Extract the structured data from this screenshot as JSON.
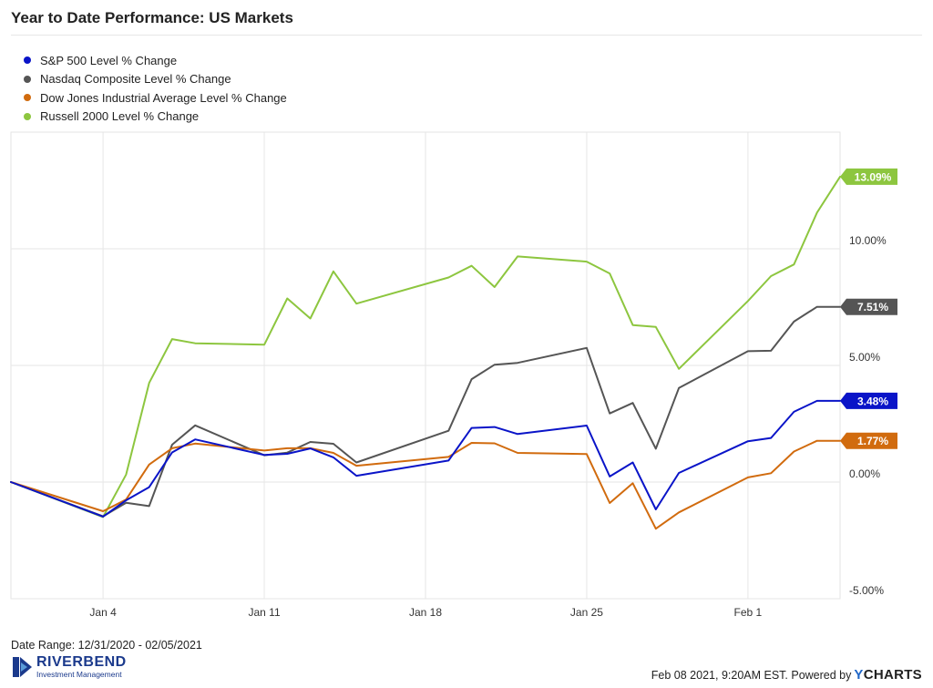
{
  "header": {
    "title": "Year to Date Performance: US Markets"
  },
  "footer": {
    "date_range": "Date Range: 12/31/2020 - 02/05/2021",
    "timestamp": "Feb 08 2021, 9:20AM EST. Powered by",
    "brand_y": "Y",
    "brand_rest": "CHARTS",
    "logo_name": "RIVERBEND",
    "logo_sub": "Investment Management"
  },
  "chart_data": {
    "type": "line",
    "title": "Year to Date Performance: US Markets",
    "x": [
      "2020-12-31",
      "2021-01-04",
      "2021-01-05",
      "2021-01-06",
      "2021-01-07",
      "2021-01-08",
      "2021-01-11",
      "2021-01-12",
      "2021-01-13",
      "2021-01-14",
      "2021-01-15",
      "2021-01-19",
      "2021-01-20",
      "2021-01-21",
      "2021-01-22",
      "2021-01-25",
      "2021-01-26",
      "2021-01-27",
      "2021-01-28",
      "2021-01-29",
      "2021-02-01",
      "2021-02-02",
      "2021-02-03",
      "2021-02-04",
      "2021-02-05"
    ],
    "x_ticks": [
      {
        "label": "Jan 4",
        "date": "2021-01-04"
      },
      {
        "label": "Jan 11",
        "date": "2021-01-11"
      },
      {
        "label": "Jan 18",
        "date": "2021-01-18"
      },
      {
        "label": "Jan 25",
        "date": "2021-01-25"
      },
      {
        "label": "Feb 1",
        "date": "2021-02-01"
      }
    ],
    "y_ticks": [
      {
        "label": "10.00%",
        "value": 10
      },
      {
        "label": "5.00%",
        "value": 5
      },
      {
        "label": "0.00%",
        "value": 0
      },
      {
        "label": "-5.00%",
        "value": -5
      }
    ],
    "ylim": [
      -5,
      15
    ],
    "grid": true,
    "legend_position": "top-left",
    "series": [
      {
        "name": "S&P 500 Level % Change",
        "color": "#0a14c8",
        "values": [
          0,
          -1.48,
          -0.78,
          -0.22,
          1.27,
          1.83,
          1.16,
          1.21,
          1.44,
          1.06,
          0.27,
          0.92,
          2.32,
          2.36,
          2.06,
          2.42,
          0.24,
          0.84,
          -1.17,
          0.39,
          1.75,
          1.89,
          3.01,
          3.48,
          3.48
        ],
        "end_label": "3.48%"
      },
      {
        "name": "Nasdaq Composite Level % Change",
        "color": "#555555",
        "values": [
          0,
          -1.47,
          -0.89,
          -1.03,
          1.6,
          2.43,
          1.15,
          1.26,
          1.72,
          1.64,
          0.84,
          2.2,
          4.41,
          5.03,
          5.11,
          5.75,
          2.94,
          3.39,
          1.43,
          4.03,
          5.61,
          5.63,
          6.88,
          7.51,
          7.51
        ],
        "end_label": "7.51%"
      },
      {
        "name": "Dow Jones Industrial Average Level % Change",
        "color": "#d16b0e",
        "values": [
          0,
          -1.25,
          -0.75,
          0.75,
          1.45,
          1.65,
          1.35,
          1.45,
          1.45,
          1.25,
          0.7,
          1.08,
          1.68,
          1.66,
          1.25,
          1.2,
          -0.9,
          -0.05,
          -2.0,
          -1.3,
          0.2,
          0.38,
          1.31,
          1.77,
          1.77
        ],
        "end_label": "1.77%"
      },
      {
        "name": "Russell 2000 Level % Change",
        "color": "#8dc63f",
        "values": [
          0,
          -1.5,
          0.32,
          4.25,
          6.13,
          5.95,
          5.89,
          7.87,
          7.01,
          9.03,
          7.65,
          8.77,
          9.27,
          8.36,
          9.67,
          9.45,
          8.94,
          6.73,
          6.65,
          4.85,
          7.76,
          8.83,
          9.33,
          11.55,
          13.09
        ],
        "end_label": "13.09%"
      }
    ]
  }
}
